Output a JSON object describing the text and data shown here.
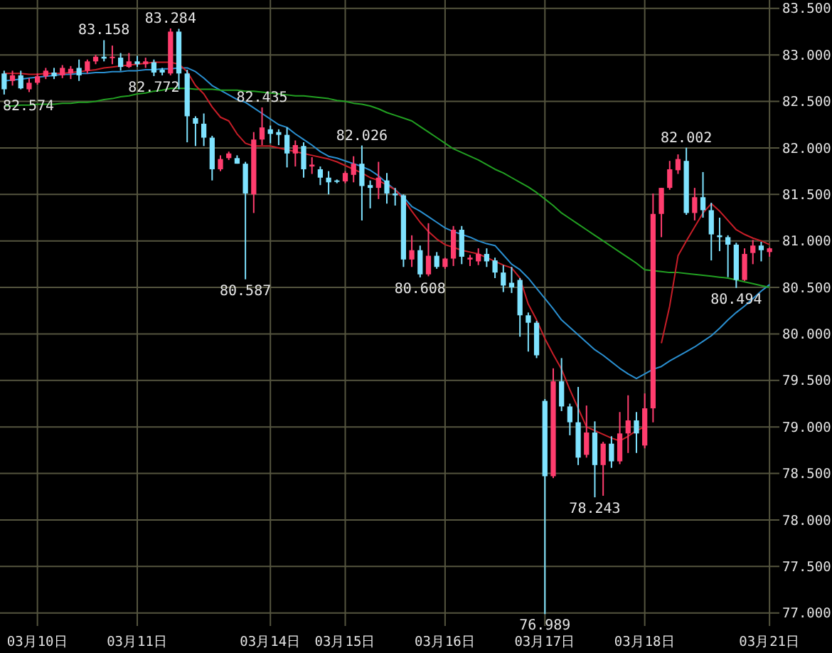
{
  "chart_data": {
    "type": "candlestick",
    "grid": true,
    "categories": [
      null,
      null,
      null,
      null,
      "03月10日",
      null,
      null,
      null,
      null,
      null,
      null,
      null,
      null,
      null,
      null,
      null,
      "03月11日",
      null,
      null,
      null,
      null,
      null,
      null,
      null,
      null,
      null,
      null,
      null,
      null,
      null,
      null,
      null,
      "03月14日",
      null,
      null,
      null,
      null,
      null,
      null,
      null,
      null,
      "03月15日",
      null,
      null,
      null,
      null,
      null,
      null,
      null,
      null,
      null,
      null,
      null,
      "03月16日",
      null,
      null,
      null,
      null,
      null,
      null,
      null,
      null,
      null,
      null,
      null,
      "03月17日",
      null,
      null,
      null,
      null,
      null,
      null,
      null,
      null,
      null,
      null,
      null,
      "03月18日",
      null,
      null,
      null,
      null,
      null,
      null,
      null,
      null,
      null,
      null,
      null,
      null,
      null,
      null,
      "03月21日"
    ],
    "ylim": [
      76.86,
      83.59
    ],
    "yticks": [
      {
        "value": 77,
        "label": "77.000"
      },
      {
        "value": 77.5,
        "label": "77.500"
      },
      {
        "value": 78,
        "label": "78.000"
      },
      {
        "value": 78.5,
        "label": "78.500"
      },
      {
        "value": 79,
        "label": "79.000"
      },
      {
        "value": 79.5,
        "label": "79.500"
      },
      {
        "value": 80,
        "label": "80.000"
      },
      {
        "value": 80.5,
        "label": "80.500"
      },
      {
        "value": 81,
        "label": "81.000"
      },
      {
        "value": 81.5,
        "label": "81.500"
      },
      {
        "value": 82,
        "label": "82.000"
      },
      {
        "value": 82.5,
        "label": "82.500"
      },
      {
        "value": 83,
        "label": "83.000"
      },
      {
        "value": 83.5,
        "label": "83.500"
      }
    ],
    "series": [
      {
        "type": "line",
        "color": "#2a8fd0",
        "values": [
          82.72,
          82.73,
          82.74,
          82.75,
          82.76,
          82.77,
          82.78,
          82.79,
          82.79,
          82.8,
          82.8,
          82.81,
          82.81,
          82.82,
          82.82,
          82.83,
          82.83,
          82.84,
          82.84,
          82.85,
          82.85,
          82.86,
          82.86,
          82.82,
          82.75,
          82.67,
          82.62,
          82.57,
          82.52,
          82.49,
          82.43,
          82.37,
          82.31,
          82.25,
          82.22,
          82.15,
          82.09,
          82.03,
          81.96,
          81.91,
          81.89,
          81.86,
          81.83,
          81.8,
          81.76,
          81.7,
          81.62,
          81.55,
          81.47,
          81.37,
          81.32,
          81.26,
          81.2,
          81.14,
          81.1,
          81.07,
          81.04,
          81.0,
          80.97,
          80.95,
          80.85,
          80.75,
          80.69,
          80.6,
          80.49,
          80.38,
          80.27,
          80.15,
          80.07,
          79.99,
          79.91,
          79.83,
          79.77,
          79.7,
          79.63,
          79.57,
          79.52,
          79.57,
          79.62,
          79.65,
          79.71,
          79.76,
          79.81,
          79.86,
          79.92,
          79.98,
          80.06,
          80.15,
          80.23,
          80.3,
          80.38,
          80.46,
          80.53
        ]
      },
      {
        "type": "line",
        "color": "#22a022",
        "values": [
          82.45,
          82.45,
          82.46,
          82.46,
          82.47,
          82.47,
          82.47,
          82.48,
          82.48,
          82.49,
          82.49,
          82.5,
          82.52,
          82.53,
          82.55,
          82.56,
          82.58,
          82.59,
          82.61,
          82.62,
          82.64,
          82.64,
          82.64,
          82.63,
          82.63,
          82.63,
          82.62,
          82.62,
          82.62,
          82.61,
          82.61,
          82.6,
          82.59,
          82.58,
          82.57,
          82.56,
          82.56,
          82.55,
          82.54,
          82.53,
          82.51,
          82.5,
          82.48,
          82.47,
          82.45,
          82.42,
          82.38,
          82.35,
          82.32,
          82.29,
          82.23,
          82.17,
          82.11,
          82.05,
          81.99,
          81.95,
          81.91,
          81.87,
          81.82,
          81.77,
          81.73,
          81.68,
          81.63,
          81.58,
          81.52,
          81.45,
          81.38,
          81.3,
          81.24,
          81.18,
          81.12,
          81.06,
          81.0,
          80.94,
          80.88,
          80.82,
          80.76,
          80.69,
          80.68,
          80.67,
          80.66,
          80.66,
          80.65,
          80.64,
          80.63,
          80.62,
          80.61,
          80.6,
          80.58,
          80.56,
          80.54,
          80.52,
          80.5
        ]
      },
      {
        "type": "line",
        "color": "#c81e28",
        "values": [
          82.8,
          82.8,
          82.8,
          82.79,
          82.79,
          82.8,
          82.8,
          82.8,
          82.81,
          82.82,
          82.83,
          82.84,
          82.86,
          82.87,
          82.88,
          82.89,
          82.9,
          82.91,
          82.92,
          82.92,
          82.92,
          82.9,
          82.82,
          82.67,
          82.58,
          82.44,
          82.33,
          82.29,
          82.15,
          82.05,
          82.02,
          82.02,
          82.02,
          82.0,
          81.98,
          81.96,
          81.94,
          81.92,
          81.9,
          81.88,
          81.85,
          81.81,
          81.77,
          81.73,
          81.68,
          81.65,
          81.6,
          81.55,
          81.45,
          81.32,
          81.2,
          81.1,
          81.02,
          80.96,
          80.93,
          80.9,
          80.88,
          80.86,
          80.82,
          80.78,
          80.74,
          80.71,
          80.6,
          80.32,
          80.15,
          79.95,
          79.78,
          79.62,
          79.4,
          79.2,
          79.0,
          78.96,
          78.92,
          78.88,
          78.85,
          78.9,
          78.96,
          79.0,
          null,
          79.9,
          80.3,
          80.84,
          81.0,
          81.15,
          81.3,
          81.4,
          81.32,
          81.22,
          81.12,
          81.07,
          81.03,
          81.0,
          80.96
        ]
      },
      {
        "colors": [
          "#7fe3ff",
          "#ff3d6e",
          "#7fe3ff",
          "#ff3d6e",
          "#ff3d6e",
          "#ff3d6e",
          "#7fe3ff",
          "#ff3d6e",
          "#ff3d6e",
          "#7fe3ff",
          "#ff3d6e",
          "#ff3d6e",
          "#7fe3ff",
          "#ff3d6e",
          "#7fe3ff",
          "#ff3d6e",
          "#7fe3ff",
          "#ff3d6e",
          "#7fe3ff",
          "#7fe3ff",
          "#ff3d6e",
          "#7fe3ff",
          "#7fe3ff",
          "#7fe3ff",
          "#7fe3ff",
          "#7fe3ff",
          "#ff3d6e",
          "#ff3d6e",
          "#7fe3ff",
          "#7fe3ff",
          "#ff3d6e",
          "#ff3d6e",
          "#7fe3ff",
          "#7fe3ff",
          "#7fe3ff",
          "#ff3d6e",
          "#7fe3ff",
          "#ff3d6e",
          "#7fe3ff",
          "#7fe3ff",
          "#7fe3ff",
          "#ff3d6e",
          "#ff3d6e",
          "#7fe3ff",
          "#7fe3ff",
          "#ff3d6e",
          "#7fe3ff",
          "#7fe3ff",
          "#7fe3ff",
          "#ff3d6e",
          "#7fe3ff",
          "#ff3d6e",
          "#7fe3ff",
          "#ff3d6e",
          "#ff3d6e",
          "#7fe3ff",
          "#ff3d6e",
          "#ff3d6e",
          "#7fe3ff",
          "#7fe3ff",
          "#7fe3ff",
          "#7fe3ff",
          "#7fe3ff",
          "#7fe3ff",
          "#7fe3ff",
          "#7fe3ff",
          "#ff3d6e",
          "#7fe3ff",
          "#7fe3ff",
          "#7fe3ff",
          "#ff3d6e",
          "#7fe3ff",
          "#ff3d6e",
          "#7fe3ff",
          "#ff3d6e",
          "#ff3d6e",
          "#7fe3ff",
          "#ff3d6e",
          "#ff3d6e",
          "#ff3d6e",
          "#ff3d6e",
          "#ff3d6e",
          "#7fe3ff",
          "#ff3d6e",
          "#7fe3ff",
          "#7fe3ff",
          "#7fe3ff",
          "#7fe3ff",
          "#7fe3ff",
          "#ff3d6e",
          "#ff3d6e",
          "#7fe3ff",
          "#ff3d6e"
        ],
        "ohlc": [
          [
            82.8,
            82.83,
            82.574,
            82.63
          ],
          [
            82.72,
            82.83,
            82.67,
            82.78
          ],
          [
            82.78,
            82.83,
            82.63,
            82.64
          ],
          [
            82.63,
            82.75,
            82.6,
            82.7
          ],
          [
            82.7,
            82.8,
            82.68,
            82.77
          ],
          [
            82.77,
            82.86,
            82.74,
            82.83
          ],
          [
            82.81,
            82.86,
            82.74,
            82.77
          ],
          [
            82.78,
            82.89,
            82.75,
            82.86
          ],
          [
            82.8,
            82.88,
            82.74,
            82.85
          ],
          [
            82.86,
            82.95,
            82.72,
            82.78
          ],
          [
            82.83,
            82.95,
            82.8,
            82.93
          ],
          [
            82.93,
            83.0,
            82.9,
            82.98
          ],
          [
            82.98,
            83.158,
            82.93,
            82.96
          ],
          [
            82.97,
            83.1,
            82.9,
            82.98
          ],
          [
            82.97,
            83.02,
            82.83,
            82.87
          ],
          [
            82.87,
            83.02,
            82.86,
            82.93
          ],
          [
            82.93,
            82.99,
            82.87,
            82.9
          ],
          [
            82.9,
            82.97,
            82.86,
            82.93
          ],
          [
            82.92,
            82.95,
            82.772,
            82.81
          ],
          [
            82.84,
            82.86,
            82.78,
            82.81
          ],
          [
            82.8,
            83.284,
            82.78,
            83.25
          ],
          [
            83.25,
            83.28,
            82.63,
            82.8
          ],
          [
            82.8,
            82.84,
            82.06,
            82.34
          ],
          [
            82.32,
            82.34,
            82.02,
            82.26
          ],
          [
            82.26,
            82.37,
            82.02,
            82.11
          ],
          [
            82.11,
            82.13,
            81.65,
            81.77
          ],
          [
            81.77,
            81.92,
            81.75,
            81.88
          ],
          [
            81.89,
            81.96,
            81.87,
            81.94
          ],
          [
            81.89,
            81.92,
            81.83,
            81.83
          ],
          [
            81.83,
            81.85,
            80.587,
            81.51
          ],
          [
            81.5,
            82.17,
            81.3,
            82.09
          ],
          [
            82.09,
            82.435,
            82.03,
            82.22
          ],
          [
            82.2,
            82.24,
            82.05,
            82.15
          ],
          [
            82.17,
            82.2,
            82.03,
            82.14
          ],
          [
            82.14,
            82.22,
            81.79,
            81.94
          ],
          [
            81.94,
            82.08,
            81.8,
            82.03
          ],
          [
            82.02,
            82.06,
            81.68,
            81.77
          ],
          [
            81.8,
            81.9,
            81.72,
            81.82
          ],
          [
            81.77,
            81.8,
            81.6,
            81.68
          ],
          [
            81.68,
            81.75,
            81.5,
            81.63
          ],
          [
            81.65,
            81.66,
            81.62,
            81.64
          ],
          [
            81.64,
            81.75,
            81.62,
            81.73
          ],
          [
            81.71,
            81.91,
            81.63,
            81.83
          ],
          [
            81.83,
            82.026,
            81.22,
            81.59
          ],
          [
            81.6,
            81.65,
            81.35,
            81.57
          ],
          [
            81.57,
            81.85,
            81.45,
            81.68
          ],
          [
            81.65,
            81.73,
            81.4,
            81.51
          ],
          [
            81.51,
            81.57,
            81.38,
            81.49
          ],
          [
            81.49,
            81.5,
            80.72,
            80.8
          ],
          [
            80.8,
            81.06,
            80.72,
            80.9
          ],
          [
            80.9,
            80.95,
            80.608,
            80.64
          ],
          [
            80.64,
            81.19,
            80.62,
            80.84
          ],
          [
            80.84,
            80.88,
            80.7,
            80.72
          ],
          [
            80.72,
            80.82,
            80.7,
            80.81
          ],
          [
            80.81,
            81.16,
            80.73,
            81.12
          ],
          [
            81.12,
            81.16,
            80.75,
            80.83
          ],
          [
            80.8,
            80.85,
            80.73,
            80.82
          ],
          [
            80.78,
            80.92,
            80.74,
            80.86
          ],
          [
            80.86,
            80.92,
            80.72,
            80.78
          ],
          [
            80.79,
            80.82,
            80.6,
            80.66
          ],
          [
            80.66,
            80.74,
            80.45,
            80.52
          ],
          [
            80.55,
            80.72,
            80.44,
            80.5
          ],
          [
            80.58,
            80.6,
            79.97,
            80.2
          ],
          [
            80.2,
            80.23,
            79.81,
            80.12
          ],
          [
            80.12,
            80.14,
            79.74,
            79.77
          ],
          [
            79.28,
            79.3,
            76.989,
            78.47
          ],
          [
            78.47,
            79.63,
            78.45,
            79.49
          ],
          [
            79.49,
            79.74,
            79.17,
            79.22
          ],
          [
            79.22,
            79.25,
            78.91,
            79.05
          ],
          [
            79.05,
            79.43,
            78.59,
            78.67
          ],
          [
            78.7,
            79.23,
            78.67,
            78.94
          ],
          [
            78.94,
            79.06,
            78.243,
            78.59
          ],
          [
            78.59,
            78.84,
            78.26,
            78.82
          ],
          [
            78.82,
            78.9,
            78.56,
            78.63
          ],
          [
            78.63,
            79.16,
            78.6,
            78.93
          ],
          [
            78.93,
            79.34,
            78.72,
            79.07
          ],
          [
            79.07,
            79.16,
            78.72,
            78.93
          ],
          [
            78.8,
            79.36,
            78.77,
            79.2
          ],
          [
            79.2,
            81.51,
            79.05,
            81.29
          ],
          [
            81.29,
            81.57,
            81.04,
            81.57
          ],
          [
            81.57,
            81.86,
            81.55,
            81.77
          ],
          [
            81.76,
            81.93,
            81.72,
            81.88
          ],
          [
            81.86,
            82.002,
            81.28,
            81.3
          ],
          [
            81.3,
            81.57,
            81.22,
            81.47
          ],
          [
            81.47,
            81.74,
            81.25,
            81.33
          ],
          [
            81.33,
            81.41,
            80.79,
            81.07
          ],
          [
            81.06,
            81.25,
            80.89,
            81.04
          ],
          [
            81.04,
            81.06,
            80.61,
            80.96
          ],
          [
            80.96,
            80.98,
            80.494,
            80.58
          ],
          [
            80.58,
            80.92,
            80.57,
            80.86
          ],
          [
            80.87,
            81.01,
            80.75,
            80.95
          ],
          [
            80.95,
            80.99,
            80.78,
            80.9
          ],
          [
            80.88,
            80.93,
            80.83,
            80.92
          ]
        ]
      }
    ],
    "annotations": [
      {
        "text": "82.574",
        "y": 82.574
      },
      {
        "text": "83.158",
        "y": 83.158
      },
      {
        "text": "82.772",
        "y": 82.772
      },
      {
        "text": "83.284",
        "y": 83.284
      },
      {
        "text": "80.587",
        "y": 80.587
      },
      {
        "text": "82.435",
        "y": 82.435
      },
      {
        "text": "82.026",
        "y": 82.026
      },
      {
        "text": "80.608",
        "y": 80.608
      },
      {
        "text": "76.989",
        "y": 76.989
      },
      {
        "text": "78.243",
        "y": 78.243
      },
      {
        "text": "82.002",
        "y": 82.002
      },
      {
        "text": "80.494",
        "y": 80.494
      }
    ]
  }
}
